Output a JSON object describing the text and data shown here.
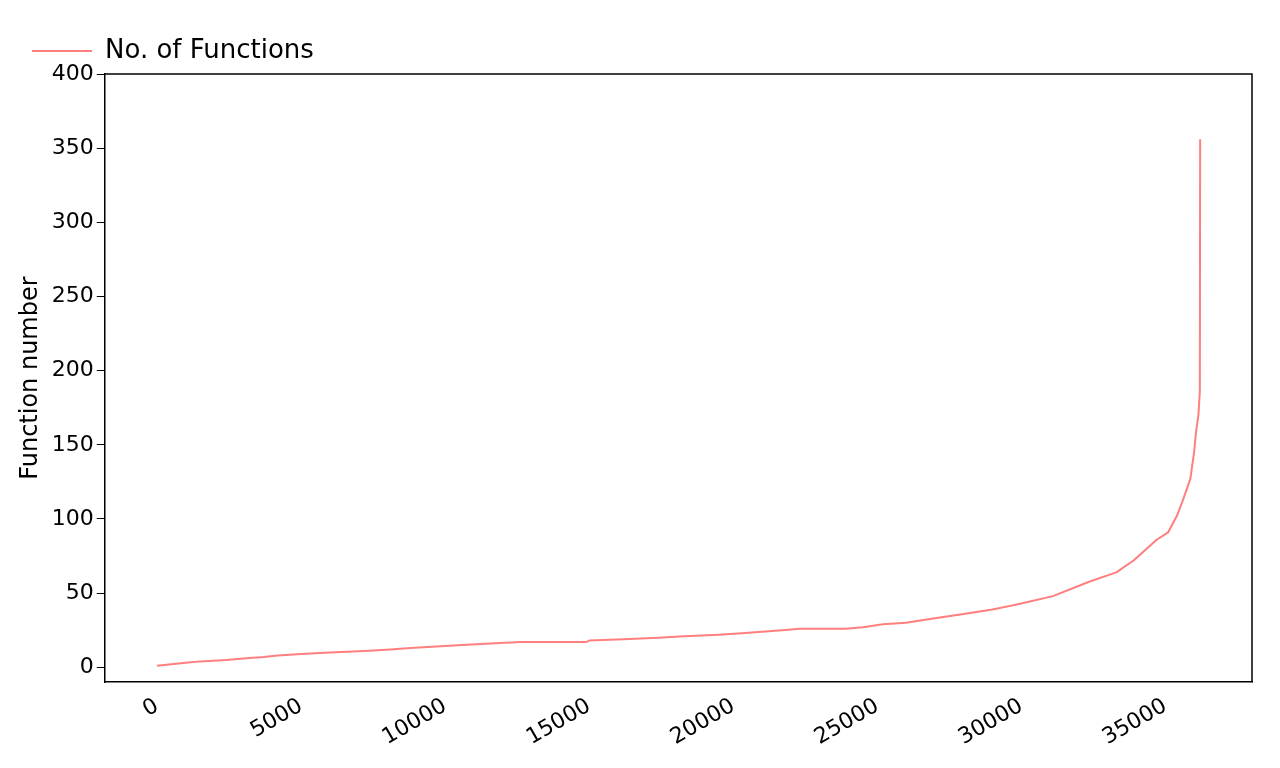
{
  "chart_data": {
    "type": "line",
    "ylabel": "Function number",
    "legend": "top left",
    "grid": false,
    "marker": "none",
    "line_style": "solid",
    "xlim": [
      -1810,
      38010
    ],
    "xticks": [
      0,
      5000,
      10000,
      15000,
      20000,
      25000,
      30000,
      35000
    ],
    "ylim": [
      -10,
      400
    ],
    "yticks": [
      0,
      50,
      100,
      150,
      200,
      250,
      300,
      350,
      400
    ],
    "series": [
      {
        "name": "No. of Functions",
        "color": "#ff7f7f",
        "x": [
          0,
          500,
          1000,
          1500,
          2400,
          3000,
          3700,
          4200,
          5000,
          6000,
          7200,
          8100,
          8800,
          9700,
          10600,
          11600,
          12600,
          14900,
          15000,
          16200,
          17400,
          18300,
          19500,
          20300,
          21000,
          21700,
          22300,
          23900,
          24500,
          25200,
          26000,
          27000,
          28000,
          29000,
          30000,
          31100,
          32400,
          33300,
          33900,
          34700,
          35100,
          35400,
          35600,
          35870,
          36000,
          36070,
          36150,
          36200,
          36210
        ],
        "values": [
          1,
          2,
          3,
          4,
          5,
          6,
          7,
          8,
          9,
          10,
          11,
          12,
          13,
          14,
          15,
          16,
          17,
          17,
          18,
          19,
          20,
          21,
          22,
          23,
          24,
          25,
          26,
          26,
          27,
          29,
          30,
          33,
          36,
          39,
          43,
          48,
          58,
          64,
          72,
          86,
          91,
          102,
          112,
          127,
          145,
          159,
          170,
          186,
          356
        ]
      }
    ]
  }
}
